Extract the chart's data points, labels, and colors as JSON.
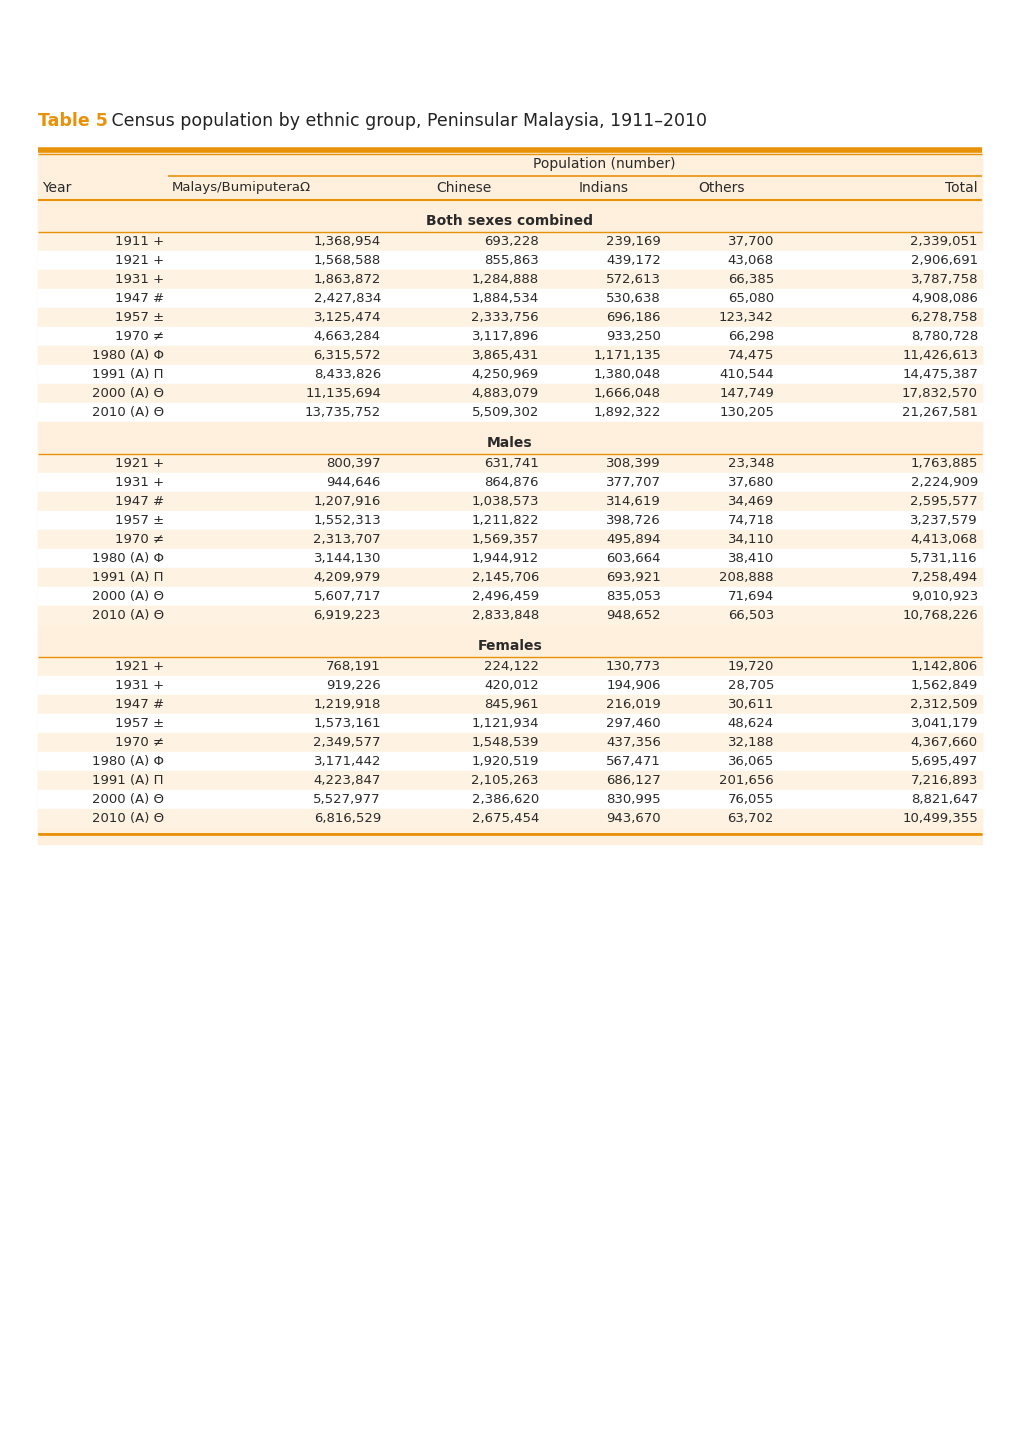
{
  "title_bold": "Table 5",
  "title_rest": " Census population by ethnic group, Peninsular Malaysia, 1911–2010",
  "title_color_bold": "#E8920A",
  "title_color_rest": "#222222",
  "header_bg": "#FEF0DC",
  "orange_line_color": "#E8920A",
  "row_bg_alt": "#FEF3E2",
  "row_bg_white": "#FFFFFF",
  "population_header": "Population (number)",
  "sections": [
    {
      "section_label": "Both sexes combined",
      "rows": [
        {
          "year": "1911 +",
          "malays": "1,368,954",
          "chinese": "693,228",
          "indians": "239,169",
          "others": "37,700",
          "total": "2,339,051"
        },
        {
          "year": "1921 +",
          "malays": "1,568,588",
          "chinese": "855,863",
          "indians": "439,172",
          "others": "43,068",
          "total": "2,906,691"
        },
        {
          "year": "1931 +",
          "malays": "1,863,872",
          "chinese": "1,284,888",
          "indians": "572,613",
          "others": "66,385",
          "total": "3,787,758"
        },
        {
          "year": "1947 #",
          "malays": "2,427,834",
          "chinese": "1,884,534",
          "indians": "530,638",
          "others": "65,080",
          "total": "4,908,086"
        },
        {
          "year": "1957 ±",
          "malays": "3,125,474",
          "chinese": "2,333,756",
          "indians": "696,186",
          "others": "123,342",
          "total": "6,278,758"
        },
        {
          "year": "1970 ≠",
          "malays": "4,663,284",
          "chinese": "3,117,896",
          "indians": "933,250",
          "others": "66,298",
          "total": "8,780,728"
        },
        {
          "year": "1980 (A) Φ",
          "malays": "6,315,572",
          "chinese": "3,865,431",
          "indians": "1,171,135",
          "others": "74,475",
          "total": "11,426,613"
        },
        {
          "year": "1991 (A) Π",
          "malays": "8,433,826",
          "chinese": "4,250,969",
          "indians": "1,380,048",
          "others": "410,544",
          "total": "14,475,387"
        },
        {
          "year": "2000 (A) Θ",
          "malays": "11,135,694",
          "chinese": "4,883,079",
          "indians": "1,666,048",
          "others": "147,749",
          "total": "17,832,570"
        },
        {
          "year": "2010 (A) Θ",
          "malays": "13,735,752",
          "chinese": "5,509,302",
          "indians": "1,892,322",
          "others": "130,205",
          "total": "21,267,581"
        }
      ]
    },
    {
      "section_label": "Males",
      "rows": [
        {
          "year": "1921 +",
          "malays": "800,397",
          "chinese": "631,741",
          "indians": "308,399",
          "others": "23,348",
          "total": "1,763,885"
        },
        {
          "year": "1931 +",
          "malays": "944,646",
          "chinese": "864,876",
          "indians": "377,707",
          "others": "37,680",
          "total": "2,224,909"
        },
        {
          "year": "1947 #",
          "malays": "1,207,916",
          "chinese": "1,038,573",
          "indians": "314,619",
          "others": "34,469",
          "total": "2,595,577"
        },
        {
          "year": "1957 ±",
          "malays": "1,552,313",
          "chinese": "1,211,822",
          "indians": "398,726",
          "others": "74,718",
          "total": "3,237,579"
        },
        {
          "year": "1970 ≠",
          "malays": "2,313,707",
          "chinese": "1,569,357",
          "indians": "495,894",
          "others": "34,110",
          "total": "4,413,068"
        },
        {
          "year": "1980 (A) Φ",
          "malays": "3,144,130",
          "chinese": "1,944,912",
          "indians": "603,664",
          "others": "38,410",
          "total": "5,731,116"
        },
        {
          "year": "1991 (A) Π",
          "malays": "4,209,979",
          "chinese": "2,145,706",
          "indians": "693,921",
          "others": "208,888",
          "total": "7,258,494"
        },
        {
          "year": "2000 (A) Θ",
          "malays": "5,607,717",
          "chinese": "2,496,459",
          "indians": "835,053",
          "others": "71,694",
          "total": "9,010,923"
        },
        {
          "year": "2010 (A) Θ",
          "malays": "6,919,223",
          "chinese": "2,833,848",
          "indians": "948,652",
          "others": "66,503",
          "total": "10,768,226"
        }
      ]
    },
    {
      "section_label": "Females",
      "rows": [
        {
          "year": "1921 +",
          "malays": "768,191",
          "chinese": "224,122",
          "indians": "130,773",
          "others": "19,720",
          "total": "1,142,806"
        },
        {
          "year": "1931 +",
          "malays": "919,226",
          "chinese": "420,012",
          "indians": "194,906",
          "others": "28,705",
          "total": "1,562,849"
        },
        {
          "year": "1947 #",
          "malays": "1,219,918",
          "chinese": "845,961",
          "indians": "216,019",
          "others": "30,611",
          "total": "2,312,509"
        },
        {
          "year": "1957 ±",
          "malays": "1,573,161",
          "chinese": "1,121,934",
          "indians": "297,460",
          "others": "48,624",
          "total": "3,041,179"
        },
        {
          "year": "1970 ≠",
          "malays": "2,349,577",
          "chinese": "1,548,539",
          "indians": "437,356",
          "others": "32,188",
          "total": "4,367,660"
        },
        {
          "year": "1980 (A) Φ",
          "malays": "3,171,442",
          "chinese": "1,920,519",
          "indians": "567,471",
          "others": "36,065",
          "total": "5,695,497"
        },
        {
          "year": "1991 (A) Π",
          "malays": "4,223,847",
          "chinese": "2,105,263",
          "indians": "686,127",
          "others": "201,656",
          "total": "7,216,893"
        },
        {
          "year": "2000 (A) Θ",
          "malays": "5,527,977",
          "chinese": "2,386,620",
          "indians": "830,995",
          "others": "76,055",
          "total": "8,821,647"
        },
        {
          "year": "2010 (A) Θ",
          "malays": "6,816,529",
          "chinese": "2,675,454",
          "indians": "943,670",
          "others": "63,702",
          "total": "10,499,355"
        }
      ]
    }
  ]
}
